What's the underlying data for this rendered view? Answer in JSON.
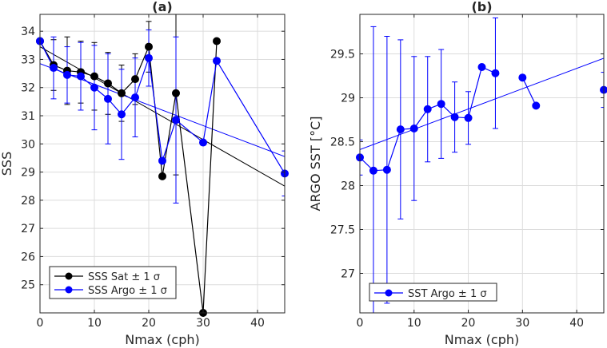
{
  "chart_data": [
    {
      "type": "line",
      "title": "(a)",
      "xlabel": "Nmax (cph)",
      "ylabel": "SSS",
      "xlim": [
        0,
        45
      ],
      "ylim": [
        24,
        34.6
      ],
      "xticks": [
        0,
        10,
        20,
        30,
        40
      ],
      "yticks": [
        25,
        26,
        27,
        28,
        29,
        30,
        31,
        32,
        33,
        34
      ],
      "grid": true,
      "legend_location": "bottom-left",
      "series": [
        {
          "name": "SSS Sat ± 1 σ",
          "color": "#000000",
          "x": [
            0,
            2.5,
            5,
            7.5,
            10,
            12.5,
            15,
            17.5,
            20,
            22.5,
            25,
            30,
            32.5
          ],
          "y": [
            33.65,
            32.8,
            32.6,
            32.55,
            32.4,
            32.15,
            31.8,
            32.3,
            33.45,
            28.85,
            31.8,
            24.0,
            33.65
          ],
          "err": [
            0,
            0.9,
            1.2,
            1.1,
            1.2,
            1.1,
            1.0,
            0.9,
            0.9,
            null,
            2.9,
            null,
            null
          ]
        },
        {
          "name": "SSS Argo ± 1 σ",
          "color": "#0000ff",
          "x": [
            0,
            2.5,
            5,
            7.5,
            10,
            12.5,
            15,
            17.5,
            20,
            22.5,
            25,
            30,
            32.5,
            45
          ],
          "y": [
            33.65,
            32.7,
            32.45,
            32.4,
            32.0,
            31.6,
            31.05,
            31.65,
            33.05,
            29.4,
            30.85,
            30.05,
            32.95,
            28.95
          ],
          "err": [
            0,
            1.1,
            1.0,
            1.2,
            1.5,
            1.6,
            1.6,
            1.4,
            1.0,
            null,
            2.95,
            null,
            null,
            0.8
          ]
        }
      ],
      "fits": [
        {
          "color": "#000000",
          "x": [
            0,
            45
          ],
          "y": [
            33.45,
            28.5
          ]
        },
        {
          "color": "#0000ff",
          "x": [
            0,
            45
          ],
          "y": [
            32.85,
            29.55
          ]
        }
      ]
    },
    {
      "type": "line",
      "title": "(b)",
      "xlabel": "Nmax (cph)",
      "ylabel": "ARGO SST [°C]",
      "xlim": [
        0,
        45
      ],
      "ylim": [
        26.55,
        29.95
      ],
      "xticks": [
        0,
        10,
        20,
        30,
        40
      ],
      "yticks": [
        27,
        27.5,
        28,
        28.5,
        29,
        29.5
      ],
      "ytick_labels": [
        "27",
        "27.5",
        "28",
        "28.5",
        "29",
        "29.5"
      ],
      "grid": true,
      "legend_location": "bottom-left",
      "series": [
        {
          "name": "SST Argo ± 1 σ",
          "color": "#0000ff",
          "x": [
            0,
            2.5,
            5,
            7.5,
            10,
            12.5,
            15,
            17.5,
            20,
            22.5,
            25,
            30,
            32.5,
            45
          ],
          "y": [
            28.32,
            28.17,
            28.18,
            28.64,
            28.65,
            28.87,
            28.93,
            28.78,
            28.77,
            29.35,
            29.28,
            29.23,
            28.91,
            29.09
          ],
          "err": [
            0.2,
            1.64,
            1.52,
            1.02,
            0.82,
            0.6,
            0.62,
            0.4,
            0.3,
            null,
            0.63,
            null,
            null,
            0.2
          ],
          "breaks": [
            11,
            13
          ]
        }
      ],
      "fits": [
        {
          "color": "#0000ff",
          "x": [
            0,
            45
          ],
          "y": [
            28.41,
            29.45
          ]
        }
      ]
    }
  ],
  "legend_a": {
    "sat": "SSS Sat ± 1 σ",
    "argo": "SSS Argo ± 1 σ"
  },
  "legend_b": {
    "argo": "SST Argo ± 1 σ"
  }
}
